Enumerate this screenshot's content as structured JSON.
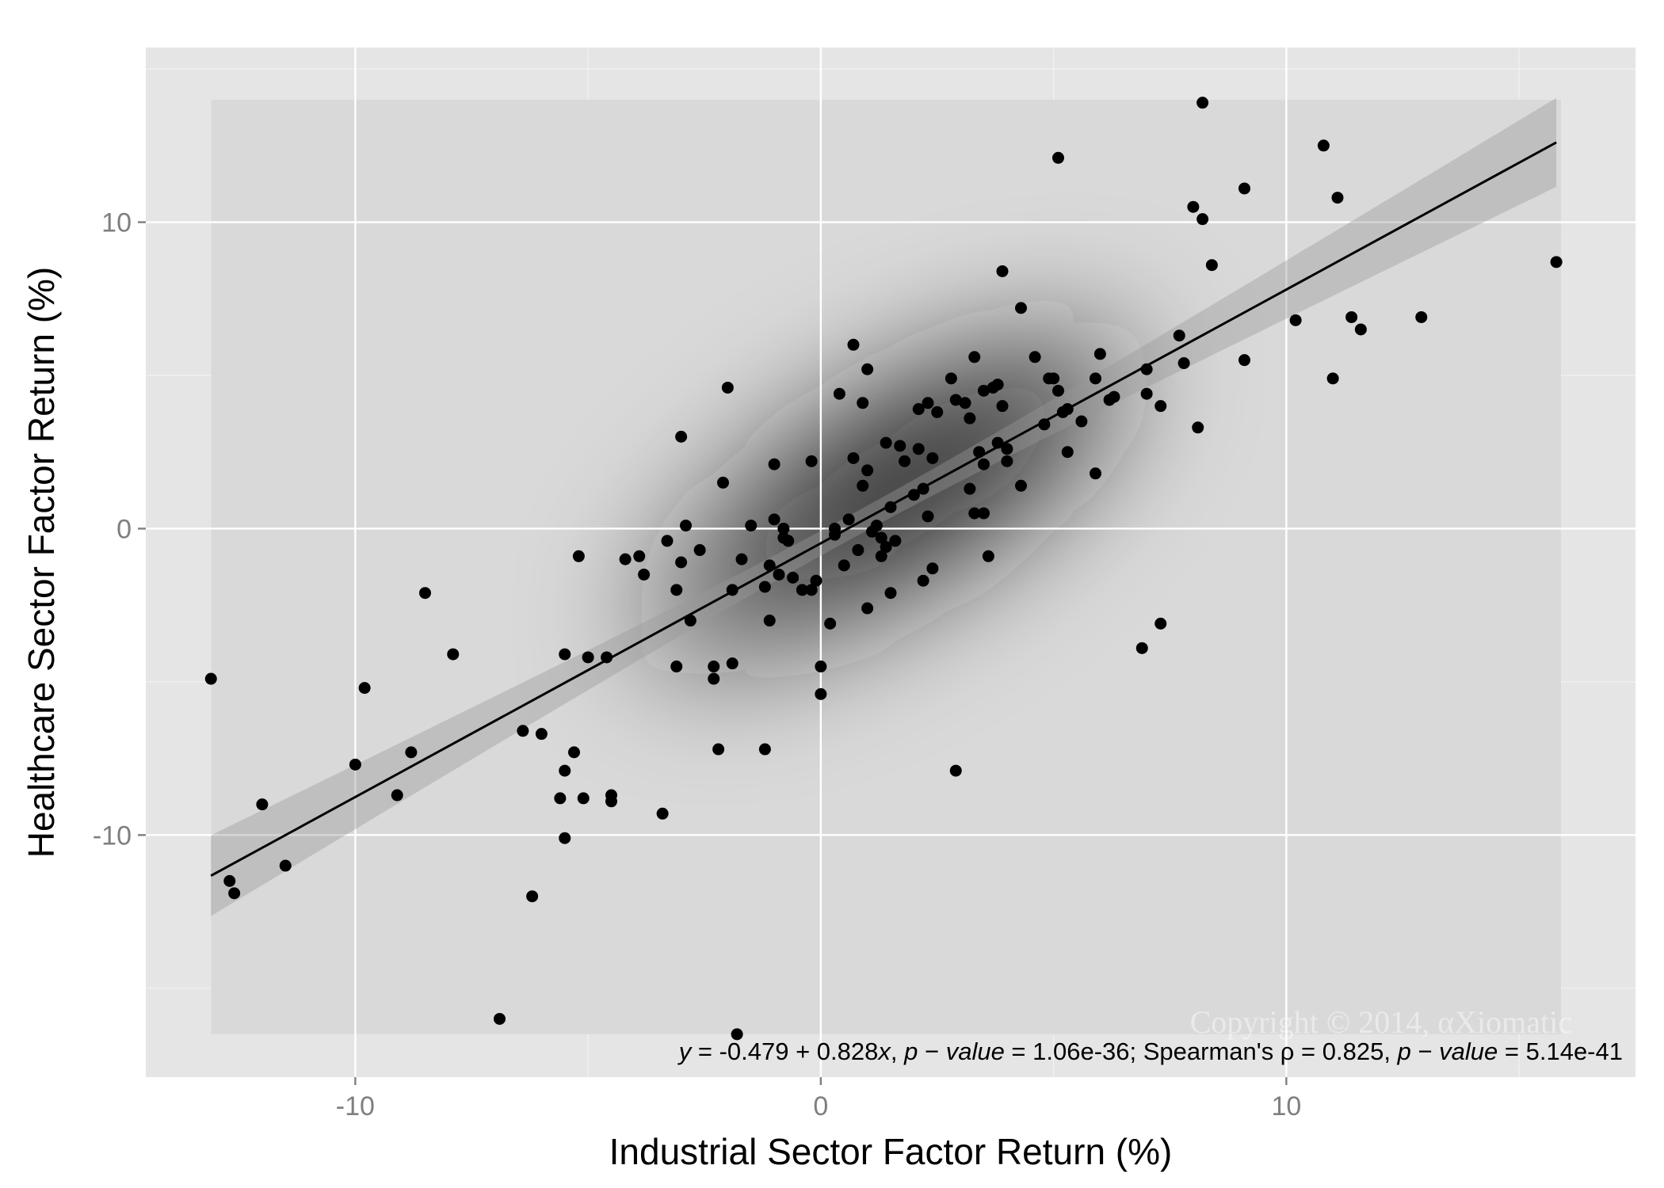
{
  "chart_data": {
    "type": "scatter",
    "xlabel": "Industrial Sector Factor Return (%)",
    "ylabel": "Healthcare Sector Factor Return (%)",
    "xlim": [
      -14.5,
      17.5
    ],
    "ylim": [
      -17.9,
      15.7
    ],
    "x_ticks": [
      -10,
      0,
      10
    ],
    "x_tick_labels": [
      "-10",
      "0",
      "10"
    ],
    "y_ticks": [
      -10,
      0,
      10
    ],
    "y_tick_labels": [
      "-10",
      "0",
      "10"
    ],
    "grid": true,
    "regression": {
      "intercept": -0.479,
      "slope": 0.828,
      "x_range": [
        -13.1,
        15.8
      ],
      "band_half_width_at_ends": 1.45,
      "band_half_width_at_mean": 0.4,
      "x_mean": 0.6
    },
    "density_region": {
      "x": [
        -13.1,
        15.9
      ],
      "y": [
        -16.5,
        14.0
      ]
    },
    "annotation": {
      "y_sym": "y",
      "eq_part1": " = -0.479 + 0.828",
      "x_sym": "x",
      "comma1": ", ",
      "p_sym": "p",
      "minus_sym": " − ",
      "value_word": "value",
      "p1_val": " = 1.06e-36;  Spearman's ρ = 0.825, ",
      "p2_val": " = 5.14e-41"
    },
    "watermark": "Copyright © 2014, αXiomatic",
    "points": [
      [
        -13.1,
        -4.9
      ],
      [
        -12.7,
        -11.5
      ],
      [
        -12.6,
        -11.9
      ],
      [
        -12.0,
        -9.0
      ],
      [
        -11.5,
        -11.0
      ],
      [
        -10.0,
        -7.7
      ],
      [
        -9.8,
        -5.2
      ],
      [
        -9.1,
        -8.7
      ],
      [
        -8.8,
        -7.3
      ],
      [
        -8.5,
        -2.1
      ],
      [
        -7.9,
        -4.1
      ],
      [
        -6.9,
        -16.0
      ],
      [
        -6.4,
        -6.6
      ],
      [
        -6.2,
        -12.0
      ],
      [
        -6.0,
        -6.7
      ],
      [
        -5.6,
        -8.8
      ],
      [
        -5.5,
        -4.1
      ],
      [
        -5.5,
        -7.9
      ],
      [
        -5.5,
        -10.1
      ],
      [
        -5.3,
        -7.3
      ],
      [
        -5.2,
        -0.9
      ],
      [
        -5.1,
        -8.8
      ],
      [
        -5.0,
        -4.2
      ],
      [
        -4.6,
        -4.2
      ],
      [
        -4.5,
        -8.7
      ],
      [
        -4.5,
        -8.9
      ],
      [
        -4.2,
        -1.0
      ],
      [
        -3.9,
        -0.9
      ],
      [
        -3.8,
        -1.5
      ],
      [
        -3.4,
        -9.3
      ],
      [
        -3.3,
        -0.4
      ],
      [
        -3.1,
        -2.0
      ],
      [
        -3.1,
        -4.5
      ],
      [
        -3.0,
        3.0
      ],
      [
        -3.0,
        -1.1
      ],
      [
        -2.9,
        0.1
      ],
      [
        -2.8,
        -3.0
      ],
      [
        -2.6,
        -0.7
      ],
      [
        -2.3,
        -4.5
      ],
      [
        -2.3,
        -4.9
      ],
      [
        -2.2,
        -7.2
      ],
      [
        -2.1,
        1.5
      ],
      [
        -2.0,
        4.6
      ],
      [
        -1.9,
        -2.0
      ],
      [
        -1.9,
        -4.4
      ],
      [
        -1.8,
        -16.5
      ],
      [
        -1.7,
        -1.0
      ],
      [
        -1.5,
        0.1
      ],
      [
        -1.2,
        -1.9
      ],
      [
        -1.2,
        -7.2
      ],
      [
        -1.1,
        -1.2
      ],
      [
        -1.1,
        -3.0
      ],
      [
        -1.0,
        0.3
      ],
      [
        -1.0,
        2.1
      ],
      [
        -0.9,
        -1.5
      ],
      [
        -0.8,
        0.0
      ],
      [
        -0.8,
        -0.3
      ],
      [
        -0.7,
        -0.4
      ],
      [
        -0.6,
        -1.6
      ],
      [
        -0.4,
        -2.0
      ],
      [
        -0.2,
        -2.0
      ],
      [
        -0.2,
        2.2
      ],
      [
        -0.1,
        -1.7
      ],
      [
        0.0,
        -4.5
      ],
      [
        0.0,
        -5.4
      ],
      [
        0.2,
        -3.1
      ],
      [
        0.3,
        -0.2
      ],
      [
        0.3,
        0.0
      ],
      [
        0.4,
        4.4
      ],
      [
        0.5,
        -1.2
      ],
      [
        0.6,
        0.3
      ],
      [
        0.7,
        2.3
      ],
      [
        0.7,
        6.0
      ],
      [
        0.8,
        -0.7
      ],
      [
        0.9,
        1.4
      ],
      [
        0.9,
        4.1
      ],
      [
        1.0,
        1.9
      ],
      [
        1.0,
        5.2
      ],
      [
        1.0,
        -2.6
      ],
      [
        1.1,
        -0.1
      ],
      [
        1.2,
        0.1
      ],
      [
        1.3,
        -0.3
      ],
      [
        1.3,
        -0.9
      ],
      [
        1.4,
        2.8
      ],
      [
        1.4,
        -0.6
      ],
      [
        1.5,
        0.7
      ],
      [
        1.5,
        -2.1
      ],
      [
        1.6,
        -0.4
      ],
      [
        1.7,
        2.7
      ],
      [
        1.8,
        2.2
      ],
      [
        2.0,
        1.1
      ],
      [
        2.1,
        3.9
      ],
      [
        2.1,
        2.6
      ],
      [
        2.2,
        -1.7
      ],
      [
        2.2,
        1.3
      ],
      [
        2.3,
        0.4
      ],
      [
        2.3,
        4.1
      ],
      [
        2.4,
        2.3
      ],
      [
        2.4,
        -1.3
      ],
      [
        2.5,
        3.8
      ],
      [
        2.8,
        4.9
      ],
      [
        2.9,
        -7.9
      ],
      [
        2.9,
        4.2
      ],
      [
        3.1,
        4.1
      ],
      [
        3.2,
        3.6
      ],
      [
        3.2,
        1.3
      ],
      [
        3.3,
        5.6
      ],
      [
        3.3,
        0.5
      ],
      [
        3.4,
        2.5
      ],
      [
        3.5,
        4.5
      ],
      [
        3.5,
        2.1
      ],
      [
        3.5,
        0.5
      ],
      [
        3.6,
        -0.9
      ],
      [
        3.7,
        4.6
      ],
      [
        3.8,
        4.7
      ],
      [
        3.8,
        2.8
      ],
      [
        3.9,
        8.4
      ],
      [
        3.9,
        4.0
      ],
      [
        4.0,
        2.2
      ],
      [
        4.0,
        2.6
      ],
      [
        4.3,
        1.4
      ],
      [
        4.3,
        7.2
      ],
      [
        4.6,
        5.6
      ],
      [
        4.8,
        3.4
      ],
      [
        4.9,
        4.9
      ],
      [
        5.0,
        4.9
      ],
      [
        5.1,
        4.5
      ],
      [
        5.1,
        12.1
      ],
      [
        5.2,
        3.8
      ],
      [
        5.3,
        2.5
      ],
      [
        5.3,
        3.9
      ],
      [
        5.6,
        3.5
      ],
      [
        5.9,
        4.9
      ],
      [
        5.9,
        1.8
      ],
      [
        6.0,
        5.7
      ],
      [
        6.2,
        4.2
      ],
      [
        6.3,
        4.3
      ],
      [
        6.9,
        -3.9
      ],
      [
        7.0,
        5.2
      ],
      [
        7.0,
        4.4
      ],
      [
        7.3,
        4.0
      ],
      [
        7.3,
        -3.1
      ],
      [
        7.7,
        6.3
      ],
      [
        7.8,
        5.4
      ],
      [
        8.0,
        10.5
      ],
      [
        8.1,
        3.3
      ],
      [
        8.2,
        10.1
      ],
      [
        8.2,
        13.9
      ],
      [
        8.4,
        8.6
      ],
      [
        9.1,
        5.5
      ],
      [
        9.1,
        11.1
      ],
      [
        10.2,
        6.8
      ],
      [
        10.8,
        12.5
      ],
      [
        11.0,
        4.9
      ],
      [
        11.1,
        10.8
      ],
      [
        11.4,
        6.9
      ],
      [
        11.6,
        6.5
      ],
      [
        12.9,
        6.9
      ],
      [
        15.8,
        8.7
      ]
    ]
  }
}
